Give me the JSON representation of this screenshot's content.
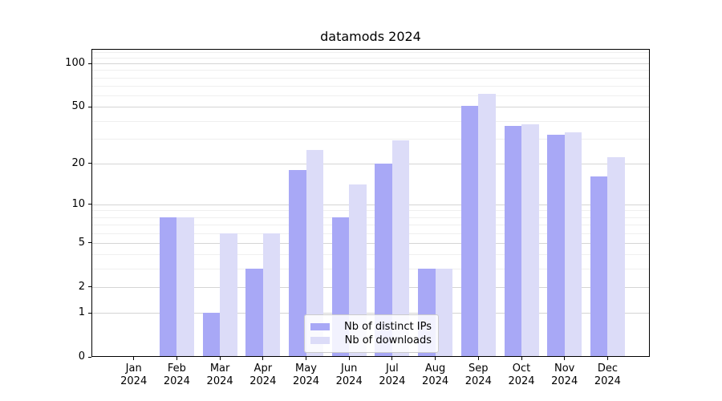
{
  "chart_data": {
    "type": "bar",
    "title": "datamods 2024",
    "categories": [
      "Jan 2024",
      "Feb 2024",
      "Mar 2024",
      "Apr 2024",
      "May 2024",
      "Jun 2024",
      "Jul 2024",
      "Aug 2024",
      "Sep 2024",
      "Oct 2024",
      "Nov 2024",
      "Dec 2024"
    ],
    "series": [
      {
        "name": "Nb of distinct IPs",
        "color": "#a8a8f6",
        "values": [
          0,
          8,
          1,
          3,
          18,
          8,
          20,
          3,
          51,
          37,
          32,
          16
        ]
      },
      {
        "name": "Nb of downloads",
        "color": "#dcdcf8",
        "values": [
          0,
          8,
          6,
          6,
          25,
          14,
          29,
          3,
          62,
          38,
          33,
          22
        ]
      }
    ],
    "yscale": "log1p",
    "ylim": [
      0,
      126
    ],
    "y_major_ticks": [
      0,
      1,
      2,
      5,
      10,
      20,
      50,
      100
    ],
    "y_minor_ticks": [
      3,
      4,
      6,
      7,
      8,
      9,
      30,
      40,
      60,
      70,
      80,
      90,
      110,
      120
    ],
    "grid": "on",
    "legend_position": "lower center"
  },
  "colors": {
    "grid_major": "#d5d5d5",
    "grid_minor": "#efefef",
    "spine": "#000000",
    "background": "#ffffff"
  }
}
